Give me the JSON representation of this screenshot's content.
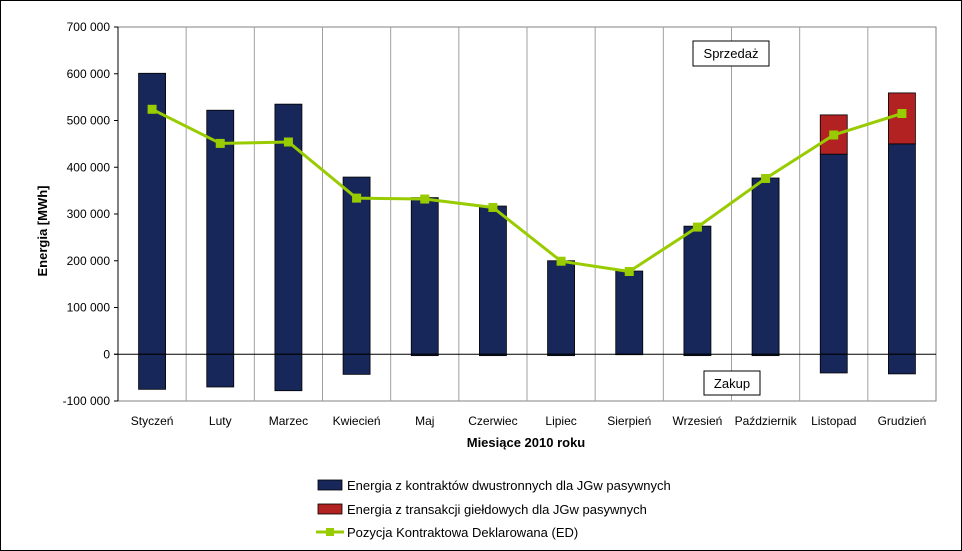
{
  "chart_data": {
    "type": "bar",
    "xlabel": "Miesiące 2010  roku",
    "ylabel": "Energia [MWh]",
    "ylim": [
      -100000,
      700000
    ],
    "yticks": [
      -100000,
      0,
      100000,
      200000,
      300000,
      400000,
      500000,
      600000,
      700000
    ],
    "ytick_labels": [
      "-100 000",
      "0",
      "100 000",
      "200 000",
      "300 000",
      "400 000",
      "500 000",
      "600 000",
      "700 000"
    ],
    "grid": "vertical",
    "legend_position": "bottom",
    "categories": [
      "Styczeń",
      "Luty",
      "Marzec",
      "Kwiecień",
      "Maj",
      "Czerwiec",
      "Lipiec",
      "Sierpień",
      "Wrzesień",
      "Październik",
      "Listopad",
      "Grudzień"
    ],
    "series": [
      {
        "name": "Energia z kontraktów dwustronnych dla JGw pasywnych",
        "color": "#17275a",
        "kind": "bar",
        "sale": [
          601000,
          522000,
          535000,
          379000,
          335000,
          317000,
          200000,
          178000,
          274000,
          377000,
          428000,
          450000
        ],
        "purchase": [
          -75000,
          -70000,
          -78000,
          -43000,
          -3000,
          -3000,
          -3000,
          -1000,
          -3000,
          -3000,
          -40000,
          -42000
        ]
      },
      {
        "name": "Energia z transakcji giełdowych dla JGw pasywnych",
        "color": "#b22222",
        "kind": "bar",
        "sale": [
          0,
          0,
          0,
          0,
          0,
          0,
          0,
          0,
          0,
          0,
          84000,
          109000
        ],
        "purchase": [
          0,
          0,
          0,
          0,
          0,
          0,
          0,
          0,
          0,
          0,
          0,
          0
        ]
      },
      {
        "name": "Pozycja Kontraktowa Deklarowana  (ED)",
        "color": "#99cc00",
        "kind": "line",
        "values": [
          524000,
          451000,
          454000,
          334000,
          332000,
          314000,
          199000,
          177000,
          272000,
          376000,
          469000,
          515000
        ]
      }
    ],
    "annotations": [
      "Sprzedaż",
      "Zakup"
    ]
  }
}
